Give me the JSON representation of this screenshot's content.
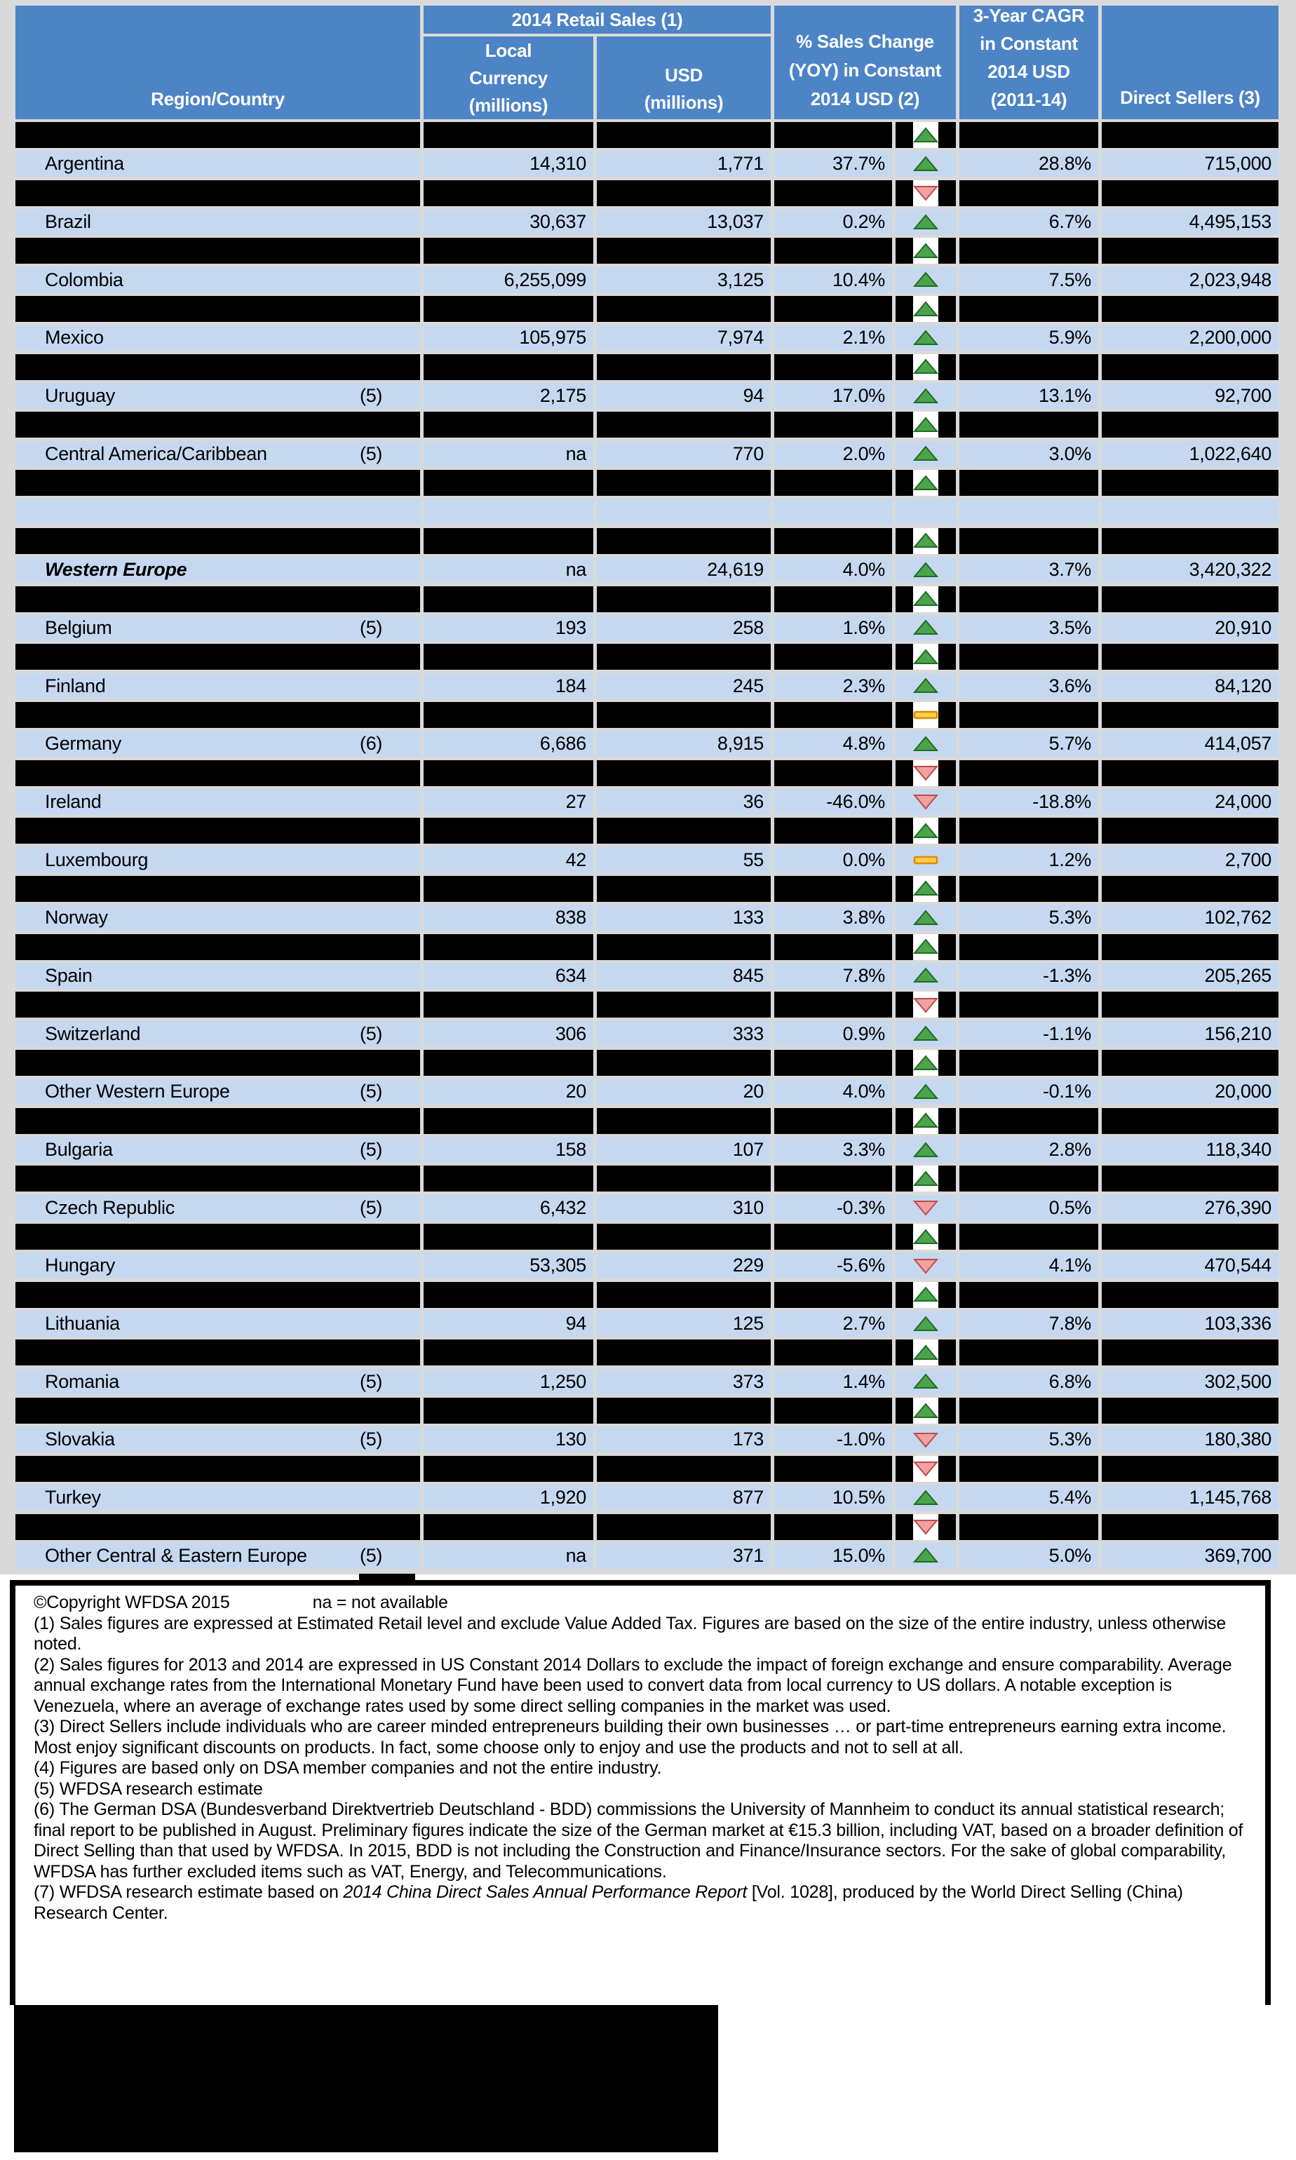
{
  "colors": {
    "header_blue": "#4d84c6",
    "row_blue": "#c5d8ef",
    "grid_gray": "#d9d9d9",
    "redaction_black": "#000000",
    "up_green_fill": "#4ba44b",
    "up_green_border": "#1f6b22",
    "down_red_fill": "#f0a1a1",
    "down_red_border": "#be4b48",
    "flat_yellow_fill": "#ffcf4d",
    "flat_yellow_border": "#e08a00"
  },
  "table": {
    "header": {
      "region_country": "Region/Country",
      "retail_sales": "2014 Retail Sales (1)",
      "local_currency": "Local\nCurrency\n(millions)",
      "usd": "USD\n(millions)",
      "pct_change": "% Sales Change\n(YOY) in Constant\n2014 USD (2)",
      "cagr": "3-Year CAGR\nin Constant\n2014 USD\n(2011-14)",
      "direct_sellers": "Direct Sellers (3)"
    },
    "icon_legend": {
      "up": "up-arrow-icon (green triangle, increase)",
      "down": "down-arrow-icon (red triangle, decrease)",
      "flat": "flat-dash-icon (yellow bar, no change)"
    },
    "rows": [
      {
        "type": "redacted",
        "icon": "up"
      },
      {
        "type": "data",
        "region": "Argentina",
        "footnote": "",
        "local": "14,310",
        "usd": "1,771",
        "change": "37.7%",
        "icon": "up",
        "cagr": "28.8%",
        "sellers": "715,000",
        "emphasis": false
      },
      {
        "type": "redacted",
        "icon": "down"
      },
      {
        "type": "data",
        "region": "Brazil",
        "footnote": "",
        "local": "30,637",
        "usd": "13,037",
        "change": "0.2%",
        "icon": "up",
        "cagr": "6.7%",
        "sellers": "4,495,153",
        "emphasis": false
      },
      {
        "type": "redacted",
        "icon": "up"
      },
      {
        "type": "data",
        "region": "Colombia",
        "footnote": "",
        "local": "6,255,099",
        "usd": "3,125",
        "change": "10.4%",
        "icon": "up",
        "cagr": "7.5%",
        "sellers": "2,023,948",
        "emphasis": false
      },
      {
        "type": "redacted",
        "icon": "up"
      },
      {
        "type": "data",
        "region": "Mexico",
        "footnote": "",
        "local": "105,975",
        "usd": "7,974",
        "change": "2.1%",
        "icon": "up",
        "cagr": "5.9%",
        "sellers": "2,200,000",
        "emphasis": false
      },
      {
        "type": "redacted",
        "icon": "up"
      },
      {
        "type": "data",
        "region": "Uruguay",
        "footnote": "(5)",
        "local": "2,175",
        "usd": "94",
        "change": "17.0%",
        "icon": "up",
        "cagr": "13.1%",
        "sellers": "92,700",
        "emphasis": false
      },
      {
        "type": "redacted",
        "icon": "up"
      },
      {
        "type": "data",
        "region": "Central America/Caribbean",
        "footnote": "(5)",
        "local": "na",
        "usd": "770",
        "change": "2.0%",
        "icon": "up",
        "cagr": "3.0%",
        "sellers": "1,022,640",
        "emphasis": false
      },
      {
        "type": "redacted",
        "icon": "up"
      },
      {
        "type": "spacer"
      },
      {
        "type": "redacted",
        "icon": "up"
      },
      {
        "type": "data",
        "region": "Western Europe",
        "footnote": "",
        "local": "na",
        "usd": "24,619",
        "change": "4.0%",
        "icon": "up",
        "cagr": "3.7%",
        "sellers": "3,420,322",
        "emphasis": true
      },
      {
        "type": "redacted",
        "icon": "up"
      },
      {
        "type": "data",
        "region": "Belgium",
        "footnote": "(5)",
        "local": "193",
        "usd": "258",
        "change": "1.6%",
        "icon": "up",
        "cagr": "3.5%",
        "sellers": "20,910",
        "emphasis": false
      },
      {
        "type": "redacted",
        "icon": "up"
      },
      {
        "type": "data",
        "region": "Finland",
        "footnote": "",
        "local": "184",
        "usd": "245",
        "change": "2.3%",
        "icon": "up",
        "cagr": "3.6%",
        "sellers": "84,120",
        "emphasis": false
      },
      {
        "type": "redacted",
        "icon": "flat"
      },
      {
        "type": "data",
        "region": "Germany",
        "footnote": "(6)",
        "local": "6,686",
        "usd": "8,915",
        "change": "4.8%",
        "icon": "up",
        "cagr": "5.7%",
        "sellers": "414,057",
        "emphasis": false
      },
      {
        "type": "redacted",
        "icon": "down"
      },
      {
        "type": "data",
        "region": "Ireland",
        "footnote": "",
        "local": "27",
        "usd": "36",
        "change": "-46.0%",
        "icon": "down",
        "cagr": "-18.8%",
        "sellers": "24,000",
        "emphasis": false
      },
      {
        "type": "redacted",
        "icon": "up"
      },
      {
        "type": "data",
        "region": "Luxembourg",
        "footnote": "",
        "local": "42",
        "usd": "55",
        "change": "0.0%",
        "icon": "flat",
        "cagr": "1.2%",
        "sellers": "2,700",
        "emphasis": false
      },
      {
        "type": "redacted",
        "icon": "up"
      },
      {
        "type": "data",
        "region": "Norway",
        "footnote": "",
        "local": "838",
        "usd": "133",
        "change": "3.8%",
        "icon": "up",
        "cagr": "5.3%",
        "sellers": "102,762",
        "emphasis": false
      },
      {
        "type": "redacted",
        "icon": "up"
      },
      {
        "type": "data",
        "region": "Spain",
        "footnote": "",
        "local": "634",
        "usd": "845",
        "change": "7.8%",
        "icon": "up",
        "cagr": "-1.3%",
        "sellers": "205,265",
        "emphasis": false
      },
      {
        "type": "redacted",
        "icon": "down"
      },
      {
        "type": "data",
        "region": "Switzerland",
        "footnote": "(5)",
        "local": "306",
        "usd": "333",
        "change": "0.9%",
        "icon": "up",
        "cagr": "-1.1%",
        "sellers": "156,210",
        "emphasis": false
      },
      {
        "type": "redacted",
        "icon": "up"
      },
      {
        "type": "data",
        "region": "Other Western Europe",
        "footnote": "(5)",
        "local": "20",
        "usd": "20",
        "change": "4.0%",
        "icon": "up",
        "cagr": "-0.1%",
        "sellers": "20,000",
        "emphasis": false
      },
      {
        "type": "redacted",
        "icon": "up"
      },
      {
        "type": "data",
        "region": "Bulgaria",
        "footnote": "(5)",
        "local": "158",
        "usd": "107",
        "change": "3.3%",
        "icon": "up",
        "cagr": "2.8%",
        "sellers": "118,340",
        "emphasis": false
      },
      {
        "type": "redacted",
        "icon": "up"
      },
      {
        "type": "data",
        "region": "Czech Republic",
        "footnote": "(5)",
        "local": "6,432",
        "usd": "310",
        "change": "-0.3%",
        "icon": "down",
        "cagr": "0.5%",
        "sellers": "276,390",
        "emphasis": false
      },
      {
        "type": "redacted",
        "icon": "up"
      },
      {
        "type": "data",
        "region": "Hungary",
        "footnote": "",
        "local": "53,305",
        "usd": "229",
        "change": "-5.6%",
        "icon": "down",
        "cagr": "4.1%",
        "sellers": "470,544",
        "emphasis": false
      },
      {
        "type": "redacted",
        "icon": "up"
      },
      {
        "type": "data",
        "region": "Lithuania",
        "footnote": "",
        "local": "94",
        "usd": "125",
        "change": "2.7%",
        "icon": "up",
        "cagr": "7.8%",
        "sellers": "103,336",
        "emphasis": false
      },
      {
        "type": "redacted",
        "icon": "up"
      },
      {
        "type": "data",
        "region": "Romania",
        "footnote": "(5)",
        "local": "1,250",
        "usd": "373",
        "change": "1.4%",
        "icon": "up",
        "cagr": "6.8%",
        "sellers": "302,500",
        "emphasis": false
      },
      {
        "type": "redacted",
        "icon": "up"
      },
      {
        "type": "data",
        "region": "Slovakia",
        "footnote": "(5)",
        "local": "130",
        "usd": "173",
        "change": "-1.0%",
        "icon": "down",
        "cagr": "5.3%",
        "sellers": "180,380",
        "emphasis": false
      },
      {
        "type": "redacted",
        "icon": "down"
      },
      {
        "type": "data",
        "region": "Turkey",
        "footnote": "",
        "local": "1,920",
        "usd": "877",
        "change": "10.5%",
        "icon": "up",
        "cagr": "5.4%",
        "sellers": "1,145,768",
        "emphasis": false
      },
      {
        "type": "redacted",
        "icon": "down"
      },
      {
        "type": "data",
        "region": "Other Central & Eastern Europe",
        "footnote": "(5)",
        "local": "na",
        "usd": "371",
        "change": "15.0%",
        "icon": "up",
        "cagr": "5.0%",
        "sellers": "369,700",
        "emphasis": false
      }
    ]
  },
  "footer": {
    "copyright": "©Copyright WFDSA 2015",
    "na_note": "na = not available",
    "notes": [
      {
        "parts": [
          {
            "text": "(1) Sales figures are expressed at Estimated Retail level and exclude Value Added Tax. Figures are based on the size of the entire industry, unless otherwise noted.",
            "italic": false
          }
        ]
      },
      {
        "parts": [
          {
            "text": "(2) Sales figures for 2013 and 2014 are expressed in US Constant 2014 Dollars to exclude the impact of foreign exchange and ensure comparability. Average annual exchange rates from the International Monetary Fund have been used to convert data from local currency to US dollars. A notable exception is Venezuela, where an average of exchange rates used by some direct selling companies in the market was used.",
            "italic": false
          }
        ]
      },
      {
        "parts": [
          {
            "text": "(3) Direct Sellers include individuals who are career minded entrepreneurs building their own businesses … or part-time entrepreneurs earning extra income. Most enjoy significant discounts on products. In fact, some choose only to enjoy and use the products and not to sell at all.",
            "italic": false
          }
        ]
      },
      {
        "parts": [
          {
            "text": "(4) Figures are based only on DSA member companies and not the entire industry.",
            "italic": false
          }
        ]
      },
      {
        "parts": [
          {
            "text": "(5) WFDSA research estimate",
            "italic": false
          }
        ]
      },
      {
        "parts": [
          {
            "text": "(6) The German DSA (Bundesverband Direktvertrieb Deutschland - BDD) commissions the University of Mannheim to conduct its annual statistical research; final report to be published in August. Preliminary figures indicate the size of the German market at €15.3 billion, including VAT, based on a broader definition of Direct Selling than that used by WFDSA. In 2015, BDD is not including the Construction and Finance/Insurance sectors. For the sake of global comparability, WFDSA has further excluded items such as VAT, Energy, and Telecommunications.",
            "italic": false
          }
        ]
      },
      {
        "parts": [
          {
            "text": "(7) WFDSA research estimate based on ",
            "italic": false
          },
          {
            "text": "2014 China Direct Sales Annual Performance Report",
            "italic": true
          },
          {
            "text": " [Vol. 1028], produced by the World Direct Selling (China) Research Center.",
            "italic": false
          }
        ]
      }
    ]
  }
}
